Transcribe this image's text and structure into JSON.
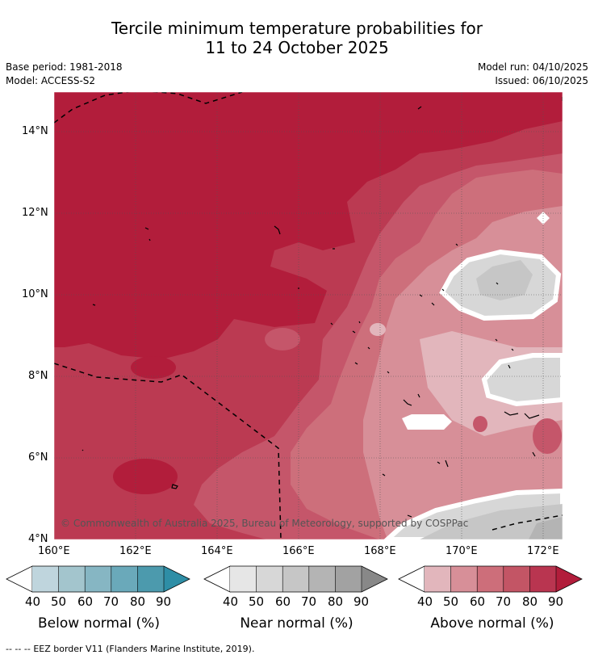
{
  "title": {
    "line1": "Tercile minimum temperature probabilities for",
    "line2": "11 to 24 October 2025"
  },
  "meta": {
    "base_period": "Base period: 1981-2018",
    "model": "Model: ACCESS-S2",
    "model_run": "Model run: 04/10/2025",
    "issued": "Issued: 06/10/2025"
  },
  "map": {
    "lat_labels": [
      "14°N",
      "12°N",
      "10°N",
      "8°N",
      "6°N",
      "4°N"
    ],
    "lon_labels": [
      "160°E",
      "162°E",
      "164°E",
      "166°E",
      "168°E",
      "170°E",
      "172°E"
    ],
    "credit": "© Commonwealth of Australia 2025, Bureau of Meteorology, supported by COSPPac"
  },
  "colorbars": {
    "below": {
      "label": "Below normal (%)",
      "ticks": [
        "40",
        "50",
        "60",
        "70",
        "80",
        "90"
      ],
      "colors": [
        "#bfd5dd",
        "#a3c5cd",
        "#86b6c3",
        "#6aa9ba",
        "#4c9aad",
        "#2e8ea6"
      ]
    },
    "near": {
      "label": "Near normal (%)",
      "ticks": [
        "40",
        "50",
        "60",
        "70",
        "80",
        "90"
      ],
      "colors": [
        "#e6e6e6",
        "#d7d7d7",
        "#c6c6c6",
        "#b4b4b4",
        "#a2a2a2",
        "#888888"
      ]
    },
    "above": {
      "label": "Above normal (%)",
      "ticks": [
        "40",
        "50",
        "60",
        "70",
        "80",
        "90"
      ],
      "colors": [
        "#e2b6bc",
        "#d78f98",
        "#cd6e7a",
        "#c35565",
        "#b93550",
        "#b21d3b"
      ]
    }
  },
  "footer": {
    "dash": "--  --  --",
    "text": "EEZ border V11 (Flanders Marine Institute, 2019)."
  }
}
